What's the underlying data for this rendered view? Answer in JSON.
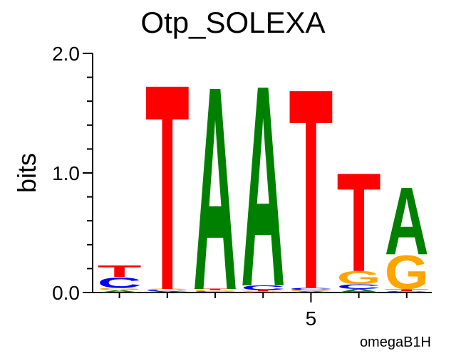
{
  "chart_data": {
    "type": "logo",
    "title": "Otp_SOLEXA",
    "ylabel": "bits",
    "xlabel": "omegaB1H",
    "categories": [
      null,
      null,
      null,
      null,
      "5",
      null,
      null
    ],
    "series": [
      {
        "name": "A",
        "color": "#008000",
        "values": [
          0.02,
          0.01,
          1.75,
          1.73,
          0.01,
          0.03,
          0.58
        ]
      },
      {
        "name": "C",
        "color": "#0000ff",
        "values": [
          0.09,
          0.01,
          0.01,
          0.04,
          0.02,
          0.04,
          0.01
        ]
      },
      {
        "name": "G",
        "color": "#ffa500",
        "values": [
          0.02,
          0.01,
          0.01,
          0.01,
          0.01,
          0.11,
          0.29
        ]
      },
      {
        "name": "T",
        "color": "#ff0000",
        "values": [
          0.1,
          1.77,
          0.01,
          0.01,
          1.72,
          0.85,
          0.02
        ]
      }
    ],
    "ylim": [
      0,
      2
    ],
    "yticks": [
      {
        "value": 0,
        "label": "0.0"
      },
      {
        "value": 1,
        "label": "1.0"
      },
      {
        "value": 2,
        "label": "2.0"
      }
    ],
    "yminorticks": [
      0.2,
      0.4,
      0.6,
      0.8,
      1.2,
      1.4,
      1.6,
      1.8
    ]
  }
}
